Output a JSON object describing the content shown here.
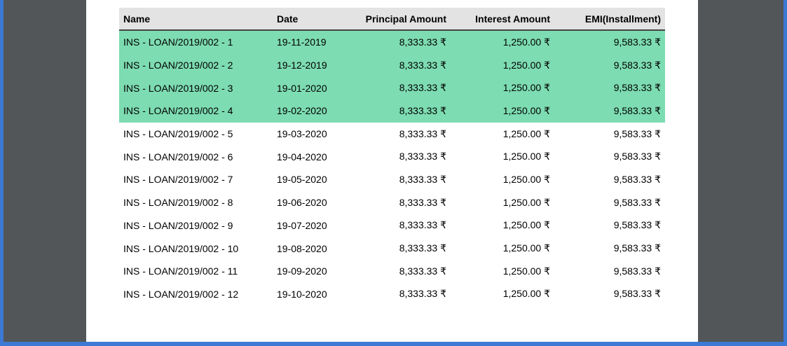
{
  "table": {
    "columns": [
      "Name",
      "Date",
      "Principal Amount",
      "Interest Amount",
      "EMI(Installment)"
    ],
    "highlight_color": "#7ddcb1",
    "rows": [
      {
        "name": "INS - LOAN/2019/002 - 1",
        "date": "19-11-2019",
        "principal": "8,333.33 ₹",
        "interest": "1,250.00 ₹",
        "emi": "9,583.33 ₹",
        "highlighted": true
      },
      {
        "name": "INS - LOAN/2019/002 - 2",
        "date": "19-12-2019",
        "principal": "8,333.33 ₹",
        "interest": "1,250.00 ₹",
        "emi": "9,583.33 ₹",
        "highlighted": true
      },
      {
        "name": "INS - LOAN/2019/002 - 3",
        "date": "19-01-2020",
        "principal": "8,333.33 ₹",
        "interest": "1,250.00 ₹",
        "emi": "9,583.33 ₹",
        "highlighted": true
      },
      {
        "name": "INS - LOAN/2019/002 - 4",
        "date": "19-02-2020",
        "principal": "8,333.33 ₹",
        "interest": "1,250.00 ₹",
        "emi": "9,583.33 ₹",
        "highlighted": true
      },
      {
        "name": "INS - LOAN/2019/002 - 5",
        "date": "19-03-2020",
        "principal": "8,333.33 ₹",
        "interest": "1,250.00 ₹",
        "emi": "9,583.33 ₹",
        "highlighted": false
      },
      {
        "name": "INS - LOAN/2019/002 - 6",
        "date": "19-04-2020",
        "principal": "8,333.33 ₹",
        "interest": "1,250.00 ₹",
        "emi": "9,583.33 ₹",
        "highlighted": false
      },
      {
        "name": "INS - LOAN/2019/002 - 7",
        "date": "19-05-2020",
        "principal": "8,333.33 ₹",
        "interest": "1,250.00 ₹",
        "emi": "9,583.33 ₹",
        "highlighted": false
      },
      {
        "name": "INS - LOAN/2019/002 - 8",
        "date": "19-06-2020",
        "principal": "8,333.33 ₹",
        "interest": "1,250.00 ₹",
        "emi": "9,583.33 ₹",
        "highlighted": false
      },
      {
        "name": "INS - LOAN/2019/002 - 9",
        "date": "19-07-2020",
        "principal": "8,333.33 ₹",
        "interest": "1,250.00 ₹",
        "emi": "9,583.33 ₹",
        "highlighted": false
      },
      {
        "name": "INS - LOAN/2019/002 - 10",
        "date": "19-08-2020",
        "principal": "8,333.33 ₹",
        "interest": "1,250.00 ₹",
        "emi": "9,583.33 ₹",
        "highlighted": false
      },
      {
        "name": "INS - LOAN/2019/002 - 11",
        "date": "19-09-2020",
        "principal": "8,333.33 ₹",
        "interest": "1,250.00 ₹",
        "emi": "9,583.33 ₹",
        "highlighted": false
      },
      {
        "name": "INS - LOAN/2019/002 - 12",
        "date": "19-10-2020",
        "principal": "8,333.33 ₹",
        "interest": "1,250.00 ₹",
        "emi": "9,583.33 ₹",
        "highlighted": false
      }
    ]
  }
}
